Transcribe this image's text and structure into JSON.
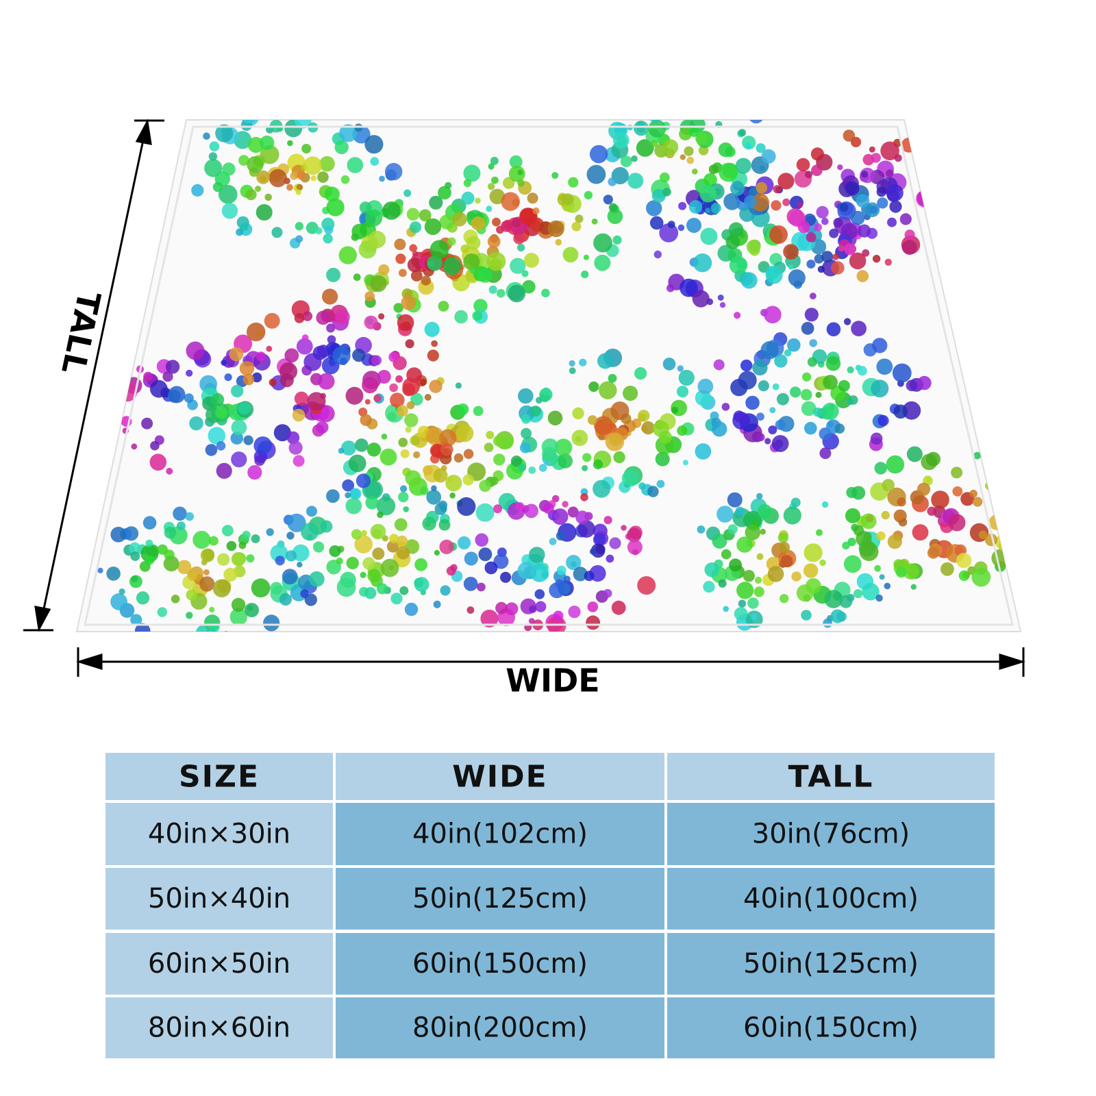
{
  "labels": {
    "tall": "TALL",
    "wide": "WIDE"
  },
  "table": {
    "header": [
      "SIZE",
      "WIDE",
      "TALL"
    ],
    "rows": [
      [
        "40in×30in",
        "40in(102cm)",
        "30in(76cm)"
      ],
      [
        "50in×40in",
        "50in(125cm)",
        "40in(100cm)"
      ],
      [
        "60in×50in",
        "60in(150cm)",
        "50in(125cm)"
      ],
      [
        "80in×60in",
        "80in(200cm)",
        "60in(150cm)"
      ]
    ]
  }
}
